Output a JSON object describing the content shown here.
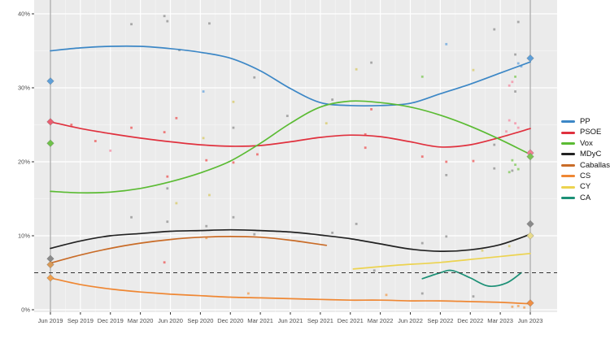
{
  "colors": {
    "panel_bg": "#ebebeb",
    "grid_major": "#ffffff",
    "grid_minor": "#f4f4f4",
    "tick": "#333333",
    "axis_text": "#4d4d4d",
    "event_line": "#9e9e9e",
    "threshold": "#333333"
  },
  "scatter_palette": {
    "gray": "#969696",
    "red": "#ee5f5f",
    "pink": "#f591a6",
    "green": "#84ca5f",
    "blue": "#6fa9de",
    "yellow": "#d9cc6e",
    "orange": "#f0a35c"
  },
  "legend": {
    "items": [
      {
        "label": "PP",
        "color": "#3c87c6"
      },
      {
        "label": "PSOE",
        "color": "#e0313e"
      },
      {
        "label": "Vox",
        "color": "#5bbb33"
      },
      {
        "label": "MDyC",
        "color": "#222222"
      },
      {
        "label": "Caballas",
        "color": "#c96c28"
      },
      {
        "label": "CS",
        "color": "#ef8733"
      },
      {
        "label": "CY",
        "color": "#ecd34f"
      },
      {
        "label": "CA",
        "color": "#1c9076"
      }
    ]
  },
  "chart_data": {
    "type": "line",
    "title": "",
    "xlabel": "",
    "ylabel": "",
    "grid": true,
    "legend_position": "right",
    "x_categories": [
      "Jun 2019",
      "Sep 2019",
      "Dec 2019",
      "Mar 2020",
      "Jun 2020",
      "Sep 2020",
      "Dec 2020",
      "Mar 2021",
      "Jun 2021",
      "Sep 2021",
      "Dec 2021",
      "Mar 2022",
      "Jun 2022",
      "Sep 2022",
      "Dec 2022",
      "Mar 2023",
      "Jun 2023"
    ],
    "y_ticks": [
      {
        "value": 0,
        "label": "0%"
      },
      {
        "value": 10,
        "label": "10%"
      },
      {
        "value": 20,
        "label": "20%"
      },
      {
        "value": 30,
        "label": "30%"
      },
      {
        "value": 40,
        "label": "40%"
      }
    ],
    "ylim": [
      -0.5,
      41.5
    ],
    "threshold_line": {
      "value": 5,
      "style": "dashed"
    },
    "event_vlines_x": [
      0,
      16
    ],
    "series": [
      {
        "name": "PP",
        "color": "#3c87c6",
        "x": [
          0,
          1,
          2,
          3,
          4,
          5,
          6,
          7,
          8,
          9,
          10,
          11,
          12,
          13,
          14,
          15,
          16
        ],
        "y": [
          35.0,
          35.4,
          35.6,
          35.6,
          35.3,
          34.8,
          34.0,
          32.3,
          29.9,
          28.0,
          27.6,
          27.6,
          27.9,
          29.2,
          30.5,
          32.0,
          33.5
        ]
      },
      {
        "name": "PSOE",
        "color": "#e0313e",
        "x": [
          0,
          1,
          2,
          3,
          4,
          5,
          6,
          7,
          8,
          9,
          10,
          11,
          12,
          13,
          14,
          15,
          16
        ],
        "y": [
          25.4,
          24.5,
          23.8,
          23.2,
          22.7,
          22.3,
          22.1,
          22.2,
          22.7,
          23.3,
          23.6,
          23.4,
          22.7,
          22.0,
          22.3,
          23.3,
          24.5
        ]
      },
      {
        "name": "Vox",
        "color": "#5bbb33",
        "x": [
          0,
          1,
          2,
          3,
          4,
          5,
          6,
          7,
          8,
          9,
          10,
          11,
          12,
          13,
          14,
          15,
          16
        ],
        "y": [
          16.0,
          15.8,
          15.9,
          16.4,
          17.3,
          18.5,
          20.1,
          22.5,
          25.2,
          27.4,
          28.2,
          28.0,
          27.4,
          26.3,
          24.8,
          23.0,
          21.0
        ]
      },
      {
        "name": "MDyC",
        "color": "#222222",
        "x": [
          0,
          1,
          2,
          3,
          4,
          5,
          6,
          7,
          8,
          9,
          10,
          11,
          12,
          13,
          14,
          15,
          16
        ],
        "y": [
          8.3,
          9.3,
          10.0,
          10.3,
          10.6,
          10.7,
          10.8,
          10.7,
          10.5,
          10.1,
          9.6,
          8.9,
          8.2,
          7.9,
          8.1,
          8.8,
          10.2
        ]
      },
      {
        "name": "Caballas",
        "color": "#c96c28",
        "x": [
          0,
          1,
          2,
          3,
          4,
          5,
          6,
          7,
          8,
          9.2
        ],
        "y": [
          6.3,
          7.4,
          8.3,
          9.0,
          9.5,
          9.8,
          9.9,
          9.8,
          9.4,
          8.7
        ]
      },
      {
        "name": "CS",
        "color": "#ef8733",
        "x": [
          0,
          1,
          2,
          3,
          4,
          5,
          6,
          7,
          8,
          9,
          10,
          11,
          12,
          13,
          14,
          15,
          16
        ],
        "y": [
          4.3,
          3.4,
          2.8,
          2.4,
          2.1,
          1.9,
          1.7,
          1.6,
          1.5,
          1.4,
          1.3,
          1.3,
          1.2,
          1.2,
          1.1,
          1.0,
          0.8
        ]
      },
      {
        "name": "CY",
        "color": "#ecd34f",
        "x": [
          10.1,
          11.5,
          13.0,
          14.5,
          16
        ],
        "y": [
          5.5,
          6.0,
          6.4,
          7.0,
          7.6
        ]
      },
      {
        "name": "CA",
        "color": "#1c9076",
        "x": [
          12.4,
          13.0,
          13.4,
          14.0,
          14.6,
          15.2,
          15.7
        ],
        "y": [
          4.2,
          5.0,
          5.3,
          4.3,
          3.2,
          3.6,
          5.0
        ]
      }
    ],
    "election_results": [
      {
        "x": 0,
        "party": "PP",
        "value": 30.9,
        "color": "#5e9fd8"
      },
      {
        "x": 0,
        "party": "PSOE",
        "value": 25.4,
        "color": "#ea5e70"
      },
      {
        "x": 0,
        "party": "Vox",
        "value": 22.5,
        "color": "#6fc24a"
      },
      {
        "x": 0,
        "party": "MDyC",
        "value": 6.9,
        "color": "#8a8a8a"
      },
      {
        "x": 0,
        "party": "Caballas",
        "value": 6.1,
        "color": "#d99a57"
      },
      {
        "x": 0,
        "party": "CS",
        "value": 4.3,
        "color": "#efa04e"
      },
      {
        "x": 16,
        "party": "PP",
        "value": 34.0,
        "color": "#5e9fd8"
      },
      {
        "x": 16,
        "party": "PSOE",
        "value": 21.2,
        "color": "#f07f93"
      },
      {
        "x": 16,
        "party": "Vox",
        "value": 20.7,
        "color": "#7cc455"
      },
      {
        "x": 16,
        "party": "MDyC",
        "value": 11.6,
        "color": "#8a8a8a"
      },
      {
        "x": 16,
        "party": "CY",
        "value": 10.0,
        "color": "#e9dc8c"
      },
      {
        "x": 16,
        "party": "CS",
        "value": 0.9,
        "color": "#ef8f45"
      }
    ],
    "poll_points": [
      {
        "x": 2.7,
        "y": 38.6,
        "c": "gray"
      },
      {
        "x": 3.8,
        "y": 39.7,
        "c": "gray"
      },
      {
        "x": 3.9,
        "y": 39.0,
        "c": "gray"
      },
      {
        "x": 5.3,
        "y": 38.7,
        "c": "gray"
      },
      {
        "x": 4.3,
        "y": 35.1,
        "c": "gray"
      },
      {
        "x": 6.8,
        "y": 31.4,
        "c": "gray"
      },
      {
        "x": 5.1,
        "y": 29.5,
        "c": "blue"
      },
      {
        "x": 6.1,
        "y": 28.1,
        "c": "yellow"
      },
      {
        "x": 15.6,
        "y": 38.9,
        "c": "gray"
      },
      {
        "x": 14.8,
        "y": 37.9,
        "c": "gray"
      },
      {
        "x": 13.2,
        "y": 35.9,
        "c": "blue"
      },
      {
        "x": 15.5,
        "y": 34.5,
        "c": "gray"
      },
      {
        "x": 15.6,
        "y": 33.3,
        "c": "blue"
      },
      {
        "x": 15.7,
        "y": 32.9,
        "c": "blue"
      },
      {
        "x": 10.2,
        "y": 32.5,
        "c": "yellow"
      },
      {
        "x": 14.1,
        "y": 32.4,
        "c": "yellow"
      },
      {
        "x": 12.4,
        "y": 31.5,
        "c": "green"
      },
      {
        "x": 15.5,
        "y": 31.5,
        "c": "green"
      },
      {
        "x": 15.4,
        "y": 30.8,
        "c": "pink"
      },
      {
        "x": 15.3,
        "y": 30.3,
        "c": "pink"
      },
      {
        "x": 15.5,
        "y": 29.5,
        "c": "gray"
      },
      {
        "x": 9.4,
        "y": 28.4,
        "c": "gray"
      },
      {
        "x": 10.7,
        "y": 27.1,
        "c": "red"
      },
      {
        "x": 10.7,
        "y": 33.4,
        "c": "gray"
      },
      {
        "x": 0.7,
        "y": 25.0,
        "c": "red"
      },
      {
        "x": 1.5,
        "y": 22.8,
        "c": "red"
      },
      {
        "x": 2.0,
        "y": 21.5,
        "c": "pink"
      },
      {
        "x": 2.7,
        "y": 24.6,
        "c": "red"
      },
      {
        "x": 4.2,
        "y": 25.9,
        "c": "red"
      },
      {
        "x": 3.8,
        "y": 24.0,
        "c": "red"
      },
      {
        "x": 3.9,
        "y": 18.0,
        "c": "red"
      },
      {
        "x": 5.2,
        "y": 20.2,
        "c": "red"
      },
      {
        "x": 6.9,
        "y": 21.0,
        "c": "red"
      },
      {
        "x": 6.1,
        "y": 19.9,
        "c": "red"
      },
      {
        "x": 5.1,
        "y": 23.2,
        "c": "yellow"
      },
      {
        "x": 9.2,
        "y": 25.2,
        "c": "yellow"
      },
      {
        "x": 6.1,
        "y": 24.6,
        "c": "gray"
      },
      {
        "x": 7.9,
        "y": 26.2,
        "c": "gray"
      },
      {
        "x": 3.9,
        "y": 16.4,
        "c": "gray"
      },
      {
        "x": 2.7,
        "y": 12.5,
        "c": "gray"
      },
      {
        "x": 6.1,
        "y": 12.5,
        "c": "gray"
      },
      {
        "x": 5.3,
        "y": 15.5,
        "c": "yellow"
      },
      {
        "x": 4.2,
        "y": 14.4,
        "c": "yellow"
      },
      {
        "x": 10.5,
        "y": 23.7,
        "c": "red"
      },
      {
        "x": 10.5,
        "y": 21.9,
        "c": "red"
      },
      {
        "x": 12.4,
        "y": 20.7,
        "c": "red"
      },
      {
        "x": 13.2,
        "y": 20.0,
        "c": "red"
      },
      {
        "x": 14.1,
        "y": 20.1,
        "c": "red"
      },
      {
        "x": 14.8,
        "y": 22.3,
        "c": "gray"
      },
      {
        "x": 14.8,
        "y": 19.1,
        "c": "gray"
      },
      {
        "x": 13.2,
        "y": 18.2,
        "c": "gray"
      },
      {
        "x": 15.4,
        "y": 18.8,
        "c": "gray"
      },
      {
        "x": 10.2,
        "y": 11.6,
        "c": "gray"
      },
      {
        "x": 15.3,
        "y": 25.6,
        "c": "pink"
      },
      {
        "x": 15.5,
        "y": 25.2,
        "c": "pink"
      },
      {
        "x": 15.6,
        "y": 24.6,
        "c": "pink"
      },
      {
        "x": 15.2,
        "y": 24.1,
        "c": "pink"
      },
      {
        "x": 15.4,
        "y": 20.2,
        "c": "green"
      },
      {
        "x": 15.5,
        "y": 19.6,
        "c": "green"
      },
      {
        "x": 15.6,
        "y": 19.0,
        "c": "green"
      },
      {
        "x": 15.3,
        "y": 18.6,
        "c": "green"
      },
      {
        "x": 3.9,
        "y": 11.9,
        "c": "gray"
      },
      {
        "x": 5.2,
        "y": 11.3,
        "c": "gray"
      },
      {
        "x": 6.8,
        "y": 10.2,
        "c": "gray"
      },
      {
        "x": 9.4,
        "y": 10.4,
        "c": "gray"
      },
      {
        "x": 5.2,
        "y": 9.7,
        "c": "orange"
      },
      {
        "x": 3.8,
        "y": 6.4,
        "c": "red"
      },
      {
        "x": 12.4,
        "y": 9.0,
        "c": "gray"
      },
      {
        "x": 13.2,
        "y": 9.9,
        "c": "gray"
      },
      {
        "x": 10.8,
        "y": 5.3,
        "c": "gray"
      },
      {
        "x": 12.4,
        "y": 2.2,
        "c": "gray"
      },
      {
        "x": 14.1,
        "y": 1.8,
        "c": "gray"
      },
      {
        "x": 14.6,
        "y": 5.1,
        "c": "gray"
      },
      {
        "x": 15.4,
        "y": 0.4,
        "c": "orange"
      },
      {
        "x": 15.6,
        "y": 0.5,
        "c": "orange"
      },
      {
        "x": 15.8,
        "y": 0.3,
        "c": "orange"
      },
      {
        "x": 15.3,
        "y": 8.6,
        "c": "yellow"
      },
      {
        "x": 14.4,
        "y": 8.0,
        "c": "yellow"
      },
      {
        "x": 6.6,
        "y": 2.2,
        "c": "orange"
      },
      {
        "x": 11.2,
        "y": 2.0,
        "c": "orange"
      }
    ]
  }
}
